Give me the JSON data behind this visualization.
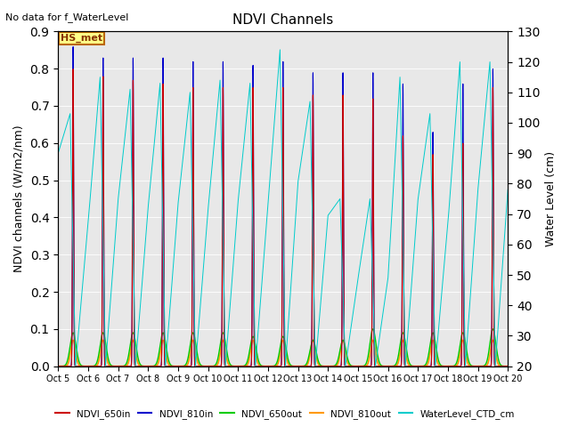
{
  "title": "NDVI Channels",
  "ylabel_left": "NDVI channels (W/m2/nm)",
  "ylabel_right": "Water Level (cm)",
  "note": "No data for f_WaterLevel",
  "annotation": "HS_met",
  "ylim_left": [
    0.0,
    0.9
  ],
  "ylim_right": [
    20,
    130
  ],
  "yticks_left": [
    0.0,
    0.1,
    0.2,
    0.3,
    0.4,
    0.5,
    0.6,
    0.7,
    0.8,
    0.9
  ],
  "yticks_right": [
    20,
    30,
    40,
    50,
    60,
    70,
    80,
    90,
    100,
    110,
    120,
    130
  ],
  "colors": {
    "NDVI_650in": "#cc0000",
    "NDVI_810in": "#0000cc",
    "NDVI_650out": "#00cc00",
    "NDVI_810out": "#ff9900",
    "WaterLevel_CTD_cm": "#00cccc"
  },
  "plot_bg": "#e8e8e8",
  "xtick_labels": [
    "Oct 5",
    "Oct 6",
    "Oct 7",
    "Oct 8",
    "Oct 9",
    "Oct 10",
    "Oct 11",
    "Oct 12",
    "Oct 13",
    "Oct 14",
    "Oct 15",
    "Oct 16",
    "Oct 17",
    "Oct 18",
    "Oct 19",
    "Oct 20"
  ],
  "xtick_positions": [
    5,
    6,
    7,
    8,
    9,
    10,
    11,
    12,
    13,
    14,
    15,
    16,
    17,
    18,
    19,
    20
  ],
  "spike_650in": [
    0.8,
    0.78,
    0.77,
    0.76,
    0.75,
    0.75,
    0.75,
    0.75,
    0.73,
    0.73,
    0.72,
    0.62,
    0.57,
    0.6,
    0.75
  ],
  "spike_810in": [
    0.86,
    0.83,
    0.83,
    0.83,
    0.82,
    0.82,
    0.81,
    0.82,
    0.79,
    0.79,
    0.79,
    0.76,
    0.63,
    0.76,
    0.8
  ],
  "spike_650out": [
    0.09,
    0.09,
    0.09,
    0.09,
    0.09,
    0.09,
    0.08,
    0.08,
    0.07,
    0.07,
    0.1,
    0.09,
    0.09,
    0.09,
    0.1
  ],
  "spike_810out": [
    0.07,
    0.07,
    0.07,
    0.07,
    0.07,
    0.07,
    0.07,
    0.07,
    0.07,
    0.07,
    0.07,
    0.07,
    0.07,
    0.07,
    0.07
  ],
  "water_peak": [
    103,
    120,
    111,
    120,
    110,
    124,
    120,
    124,
    107,
    75,
    75,
    115,
    115,
    120,
    120
  ],
  "water_trough": [
    20,
    20,
    20,
    20,
    20,
    20,
    20,
    20,
    20,
    20,
    20,
    20,
    20,
    20,
    20
  ],
  "spike_offset": [
    0.5,
    0.5,
    0.5,
    0.5,
    0.5,
    0.5,
    0.5,
    0.5,
    0.5,
    0.5,
    0.5,
    0.5,
    0.5,
    0.5,
    0.5
  ]
}
